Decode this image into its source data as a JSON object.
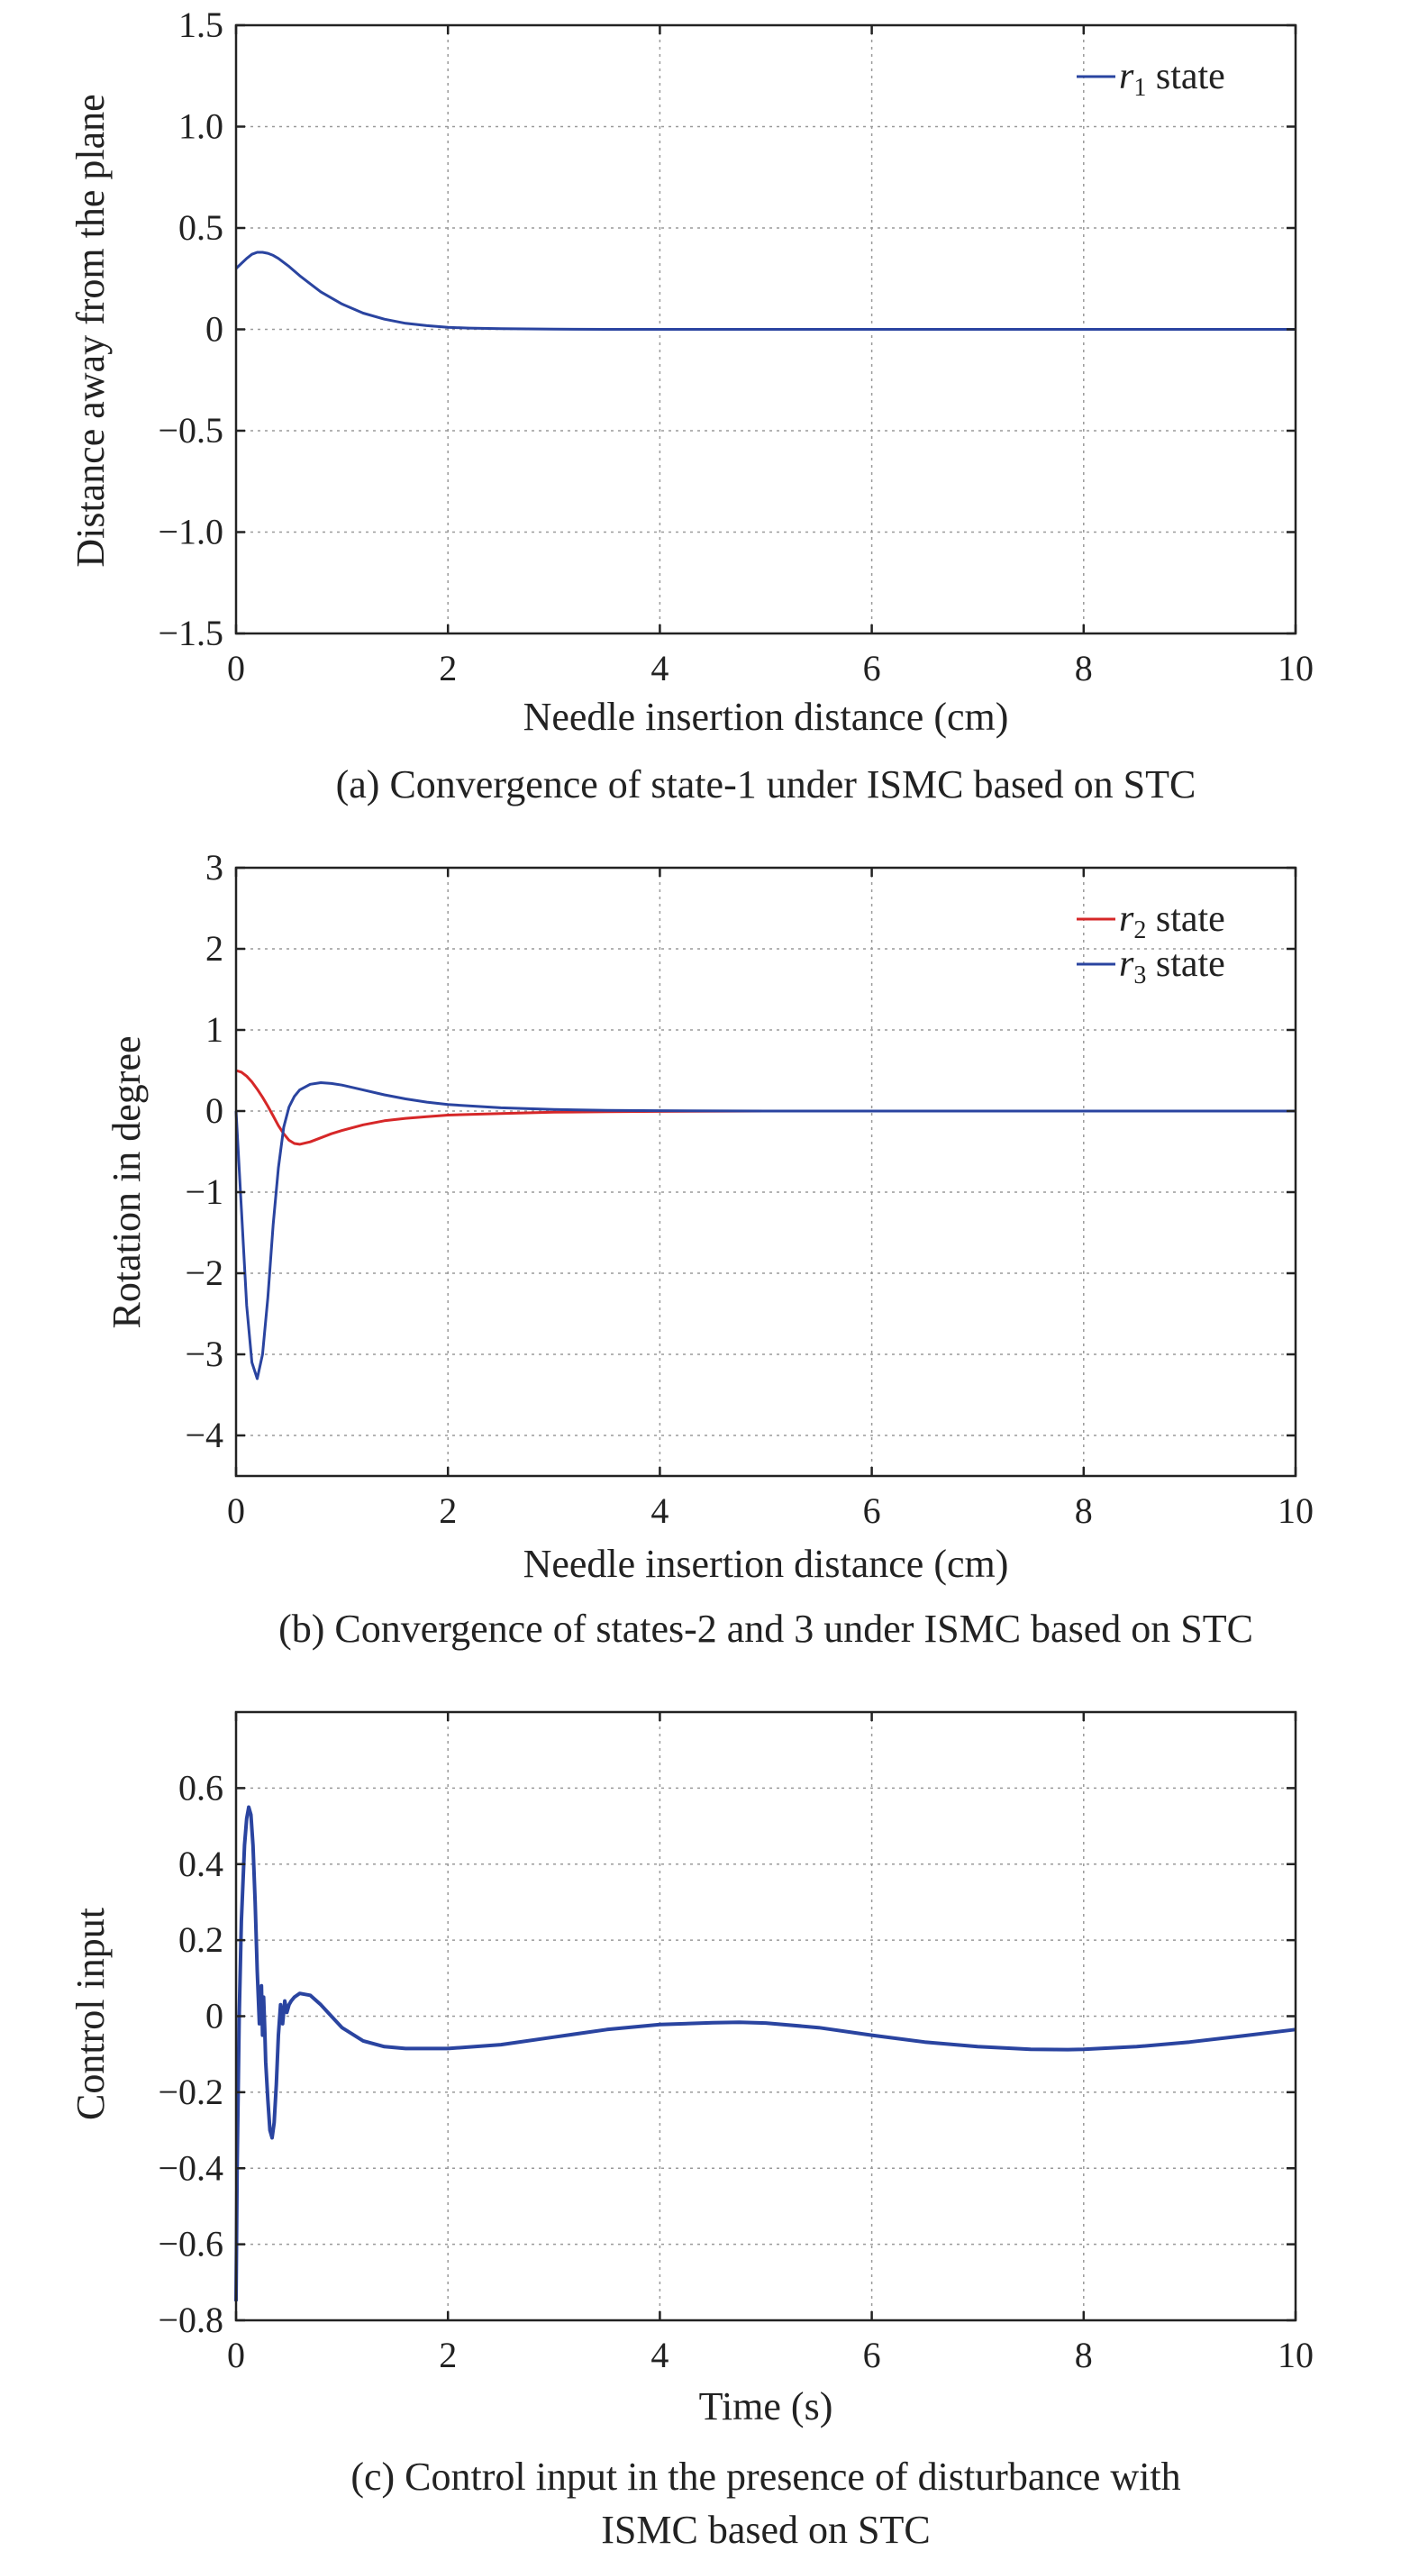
{
  "chart_data": [
    {
      "type": "line",
      "xlabel": "Needle insertion distance (cm)",
      "ylabel": "Distance away from the plane",
      "caption": "(a) Convergence of state-1 under ISMC based on STC",
      "xlim": [
        0,
        10
      ],
      "ylim": [
        -1.5,
        1.5
      ],
      "xticks": [
        "0",
        "2",
        "4",
        "6",
        "8",
        "10"
      ],
      "yticks": [
        "1.5",
        "1.0",
        "0.5",
        "0",
        "−0.5",
        "−1.0",
        "−1.5"
      ],
      "grid": true,
      "legend_position": "top-right",
      "series": [
        {
          "name_var": "r",
          "name_sub": "1",
          "name_rest": " state",
          "color": "#2a44a0",
          "x": [
            0,
            0.05,
            0.1,
            0.15,
            0.2,
            0.25,
            0.3,
            0.35,
            0.4,
            0.5,
            0.6,
            0.7,
            0.8,
            1.0,
            1.2,
            1.4,
            1.6,
            1.8,
            2.0,
            2.2,
            2.5,
            3.0,
            3.5,
            4.0,
            5,
            6,
            7,
            8,
            9,
            10
          ],
          "y": [
            0.3,
            0.325,
            0.35,
            0.37,
            0.38,
            0.38,
            0.375,
            0.365,
            0.35,
            0.31,
            0.265,
            0.225,
            0.185,
            0.125,
            0.08,
            0.05,
            0.03,
            0.018,
            0.01,
            0.006,
            0.003,
            0.001,
            0,
            0,
            0,
            0,
            0,
            0,
            0,
            0
          ]
        }
      ]
    },
    {
      "type": "line",
      "xlabel": "Needle insertion distance (cm)",
      "ylabel": "Rotation in degree",
      "caption": "(b) Convergence of states-2 and 3 under ISMC based on STC",
      "xlim": [
        0,
        10
      ],
      "ylim": [
        -4.5,
        3
      ],
      "xticks": [
        "0",
        "2",
        "4",
        "6",
        "8",
        "10"
      ],
      "yticks": [
        "3",
        "2",
        "1",
        "0",
        "−1",
        "−2",
        "−3",
        "−4"
      ],
      "ytick_values": [
        3,
        2,
        1,
        0,
        -1,
        -2,
        -3,
        -4
      ],
      "grid": true,
      "legend_position": "top-right",
      "series": [
        {
          "name_var": "r",
          "name_sub": "2",
          "name_rest": " state",
          "color": "#d62728",
          "x": [
            0,
            0.05,
            0.1,
            0.15,
            0.2,
            0.25,
            0.3,
            0.35,
            0.4,
            0.45,
            0.5,
            0.55,
            0.6,
            0.7,
            0.8,
            0.9,
            1.0,
            1.2,
            1.4,
            1.6,
            1.8,
            2.0,
            2.5,
            3.0,
            3.5,
            4.0,
            5,
            6,
            7,
            8,
            9,
            10
          ],
          "y": [
            0.5,
            0.48,
            0.43,
            0.36,
            0.27,
            0.17,
            0.06,
            -0.06,
            -0.18,
            -0.28,
            -0.36,
            -0.4,
            -0.41,
            -0.38,
            -0.33,
            -0.28,
            -0.24,
            -0.17,
            -0.12,
            -0.09,
            -0.07,
            -0.05,
            -0.03,
            -0.015,
            -0.008,
            -0.004,
            0,
            0,
            0,
            0,
            0,
            0
          ]
        },
        {
          "name_var": "r",
          "name_sub": "3",
          "name_rest": " state",
          "color": "#2a44a0",
          "x": [
            0,
            0.05,
            0.1,
            0.15,
            0.2,
            0.25,
            0.3,
            0.35,
            0.4,
            0.45,
            0.5,
            0.55,
            0.6,
            0.7,
            0.8,
            0.9,
            1.0,
            1.2,
            1.4,
            1.6,
            1.8,
            2.0,
            2.5,
            3.0,
            3.5,
            4.0,
            5,
            6,
            7,
            8,
            9,
            10
          ],
          "y": [
            0,
            -1.2,
            -2.4,
            -3.1,
            -3.3,
            -3.0,
            -2.3,
            -1.4,
            -0.7,
            -0.2,
            0.05,
            0.18,
            0.26,
            0.33,
            0.35,
            0.34,
            0.32,
            0.26,
            0.2,
            0.15,
            0.11,
            0.08,
            0.04,
            0.02,
            0.008,
            0.004,
            0,
            0,
            0,
            0,
            0,
            0
          ]
        }
      ]
    },
    {
      "type": "line",
      "xlabel": "Time (s)",
      "ylabel": "Control input",
      "caption_lines": [
        "(c) Control input in the presence of disturbance with",
        "ISMC based on STC"
      ],
      "xlim": [
        0,
        10
      ],
      "ylim": [
        -0.8,
        0.8
      ],
      "xticks": [
        "0",
        "2",
        "4",
        "6",
        "8",
        "10"
      ],
      "yticks": [
        "0.6",
        "0.4",
        "0.2",
        "0",
        "−0.2",
        "−0.4",
        "−0.6",
        "−0.8"
      ],
      "ytick_values": [
        0.6,
        0.4,
        0.2,
        0,
        -0.2,
        -0.4,
        -0.6,
        -0.8
      ],
      "grid": true,
      "series": [
        {
          "color": "#2a44a0",
          "x": [
            0,
            0.01,
            0.03,
            0.05,
            0.08,
            0.1,
            0.12,
            0.14,
            0.16,
            0.18,
            0.2,
            0.22,
            0.24,
            0.25,
            0.26,
            0.27,
            0.28,
            0.3,
            0.32,
            0.34,
            0.36,
            0.38,
            0.4,
            0.42,
            0.44,
            0.46,
            0.48,
            0.5,
            0.52,
            0.55,
            0.6,
            0.7,
            0.8,
            0.9,
            1.0,
            1.2,
            1.4,
            1.6,
            1.8,
            2.0,
            2.5,
            3.0,
            3.5,
            4.0,
            4.5,
            4.75,
            5.0,
            5.5,
            6.0,
            6.5,
            7.0,
            7.5,
            7.85,
            8.0,
            8.5,
            9.0,
            9.5,
            10
          ],
          "y": [
            -0.75,
            -0.4,
            0.0,
            0.25,
            0.45,
            0.52,
            0.55,
            0.53,
            0.45,
            0.3,
            0.12,
            -0.02,
            0.08,
            -0.05,
            0.05,
            -0.03,
            -0.12,
            -0.22,
            -0.3,
            -0.32,
            -0.28,
            -0.18,
            -0.05,
            0.03,
            -0.02,
            0.04,
            0.01,
            0.03,
            0.04,
            0.05,
            0.06,
            0.055,
            0.03,
            0.0,
            -0.03,
            -0.065,
            -0.08,
            -0.085,
            -0.085,
            -0.085,
            -0.075,
            -0.055,
            -0.035,
            -0.022,
            -0.017,
            -0.016,
            -0.018,
            -0.03,
            -0.05,
            -0.068,
            -0.08,
            -0.087,
            -0.088,
            -0.087,
            -0.08,
            -0.068,
            -0.052,
            -0.035
          ]
        }
      ]
    }
  ]
}
